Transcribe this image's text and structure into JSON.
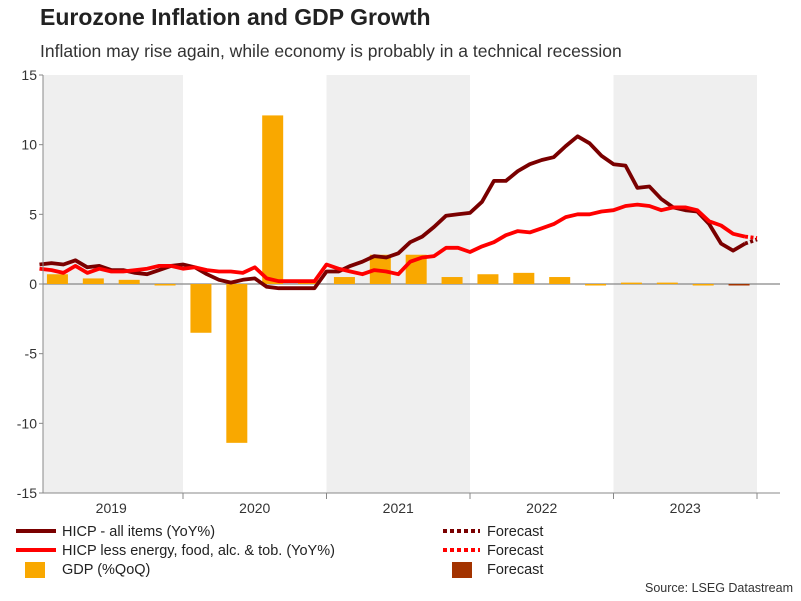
{
  "title": "Eurozone Inflation and GDP Growth",
  "subtitle": "Inflation may rise again, while economy is probably in a technical recession",
  "source": "Source: LSEG Datastream",
  "colors": {
    "hicp": "#7a0000",
    "core": "#ff0000",
    "gdp": "#f9a800",
    "gdp_forecast": "#a33300",
    "band": "#efefef",
    "axis": "#888888",
    "grid": "#cfcfcf"
  },
  "legend": [
    {
      "label": "HICP - all items (YoY%)",
      "style": "line",
      "color": "#7a0000"
    },
    {
      "label": "HICP less energy, food, alc. & tob. (YoY%)",
      "style": "line",
      "color": "#ff0000"
    },
    {
      "label": "GDP (%QoQ)",
      "style": "bar",
      "color": "#f9a800"
    },
    {
      "label": "Forecast",
      "style": "dotted",
      "color": "#7a0000"
    },
    {
      "label": "Forecast",
      "style": "dotted",
      "color": "#ff0000"
    },
    {
      "label": "Forecast",
      "style": "bar",
      "color": "#a33300"
    }
  ],
  "chart_data": {
    "type": "bar+line",
    "ylim": [
      -15,
      15
    ],
    "yticks": [
      -15,
      -10,
      -5,
      0,
      5,
      10,
      15
    ],
    "ytick_labels": [
      "-15",
      "-10",
      "-5",
      "0",
      "5",
      "10",
      "15"
    ],
    "years": [
      "2019",
      "2020",
      "2021",
      "2022",
      "2023"
    ],
    "x_start": 2019.0,
    "x_end": 2024.0,
    "series": [
      {
        "name": "HICP - all items (YoY%)",
        "type": "line",
        "x_start": 2019.0,
        "x_step_months": 1,
        "values": [
          1.4,
          1.5,
          1.4,
          1.7,
          1.2,
          1.3,
          1.0,
          1.0,
          0.8,
          0.7,
          1.0,
          1.3,
          1.4,
          1.2,
          0.7,
          0.3,
          0.1,
          0.3,
          0.4,
          -0.2,
          -0.3,
          -0.3,
          -0.3,
          -0.3,
          0.9,
          0.9,
          1.3,
          1.6,
          2.0,
          1.9,
          2.2,
          3.0,
          3.4,
          4.1,
          4.9,
          5.0,
          5.1,
          5.9,
          7.4,
          7.4,
          8.1,
          8.6,
          8.9,
          9.1,
          9.9,
          10.6,
          10.1,
          9.2,
          8.6,
          8.5,
          6.9,
          7.0,
          6.1,
          5.5,
          5.3,
          5.2,
          4.3,
          2.9,
          2.4,
          2.9
        ]
      },
      {
        "name": "HICP - all items forecast",
        "type": "line-forecast",
        "x_start": 2023.9167,
        "x_step_months": 1,
        "values": [
          2.9,
          3.2
        ]
      },
      {
        "name": "HICP less energy, food, alc. & tob. (YoY%)",
        "type": "line",
        "x_start": 2019.0,
        "x_step_months": 1,
        "values": [
          1.1,
          1.0,
          0.8,
          1.3,
          0.8,
          1.1,
          0.9,
          0.9,
          1.0,
          1.1,
          1.3,
          1.3,
          1.1,
          1.2,
          1.0,
          0.9,
          0.9,
          0.8,
          1.2,
          0.4,
          0.2,
          0.2,
          0.2,
          0.2,
          1.4,
          1.1,
          0.9,
          0.7,
          1.0,
          0.9,
          0.7,
          1.6,
          1.9,
          2.0,
          2.6,
          2.6,
          2.3,
          2.7,
          3.0,
          3.5,
          3.8,
          3.7,
          4.0,
          4.3,
          4.8,
          5.0,
          5.0,
          5.2,
          5.3,
          5.6,
          5.7,
          5.6,
          5.3,
          5.5,
          5.5,
          5.3,
          4.5,
          4.2,
          3.6,
          3.4
        ]
      },
      {
        "name": "HICP less energy forecast",
        "type": "line-forecast",
        "x_start": 2023.9167,
        "x_step_months": 1,
        "values": [
          3.4,
          3.3
        ]
      },
      {
        "name": "GDP (%QoQ)",
        "type": "bar",
        "x_start": 2019.125,
        "x_step_months": 3,
        "values": [
          0.7,
          0.4,
          0.3,
          0.0,
          -3.5,
          -11.4,
          12.1,
          0.3,
          0.5,
          2.1,
          2.1,
          0.5,
          0.7,
          0.8,
          0.5,
          -0.1,
          0.1,
          0.1,
          -0.1
        ]
      },
      {
        "name": "GDP forecast",
        "type": "bar-forecast",
        "x_start": 2023.875,
        "x_step_months": 3,
        "values": [
          -0.1
        ]
      }
    ]
  }
}
